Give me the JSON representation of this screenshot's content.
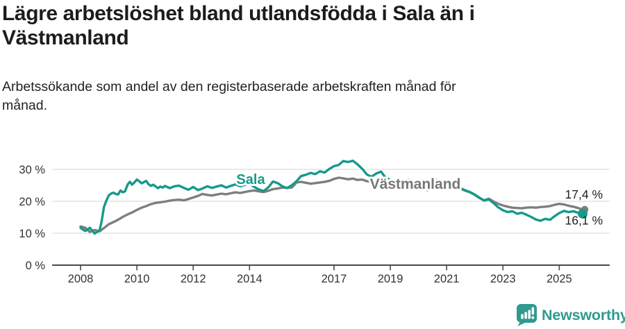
{
  "header": {
    "title": "Lägre arbetslöshet bland utlandsfödda i Sala än i\nVästmanland",
    "subtitle": "Arbetssökande som andel av den registerbaserade arbetskraften månad för\nmånad."
  },
  "footer": {
    "brand": "Newsworthy",
    "logo_icon": "newsworthy-bar-chart-bubble-icon",
    "logo_color": "#2f9a8d"
  },
  "colors": {
    "sala_teal": "#16998b",
    "vastmanland_gray": "#7e7e7e",
    "gridline": "#e3e3e3",
    "axis": "#4a4a4a",
    "tick_label": "#333333",
    "end_label": "#222222"
  },
  "chart_data": {
    "type": "line",
    "grid": "horizontal-only",
    "legend_position": "inline-labels-on-lines",
    "x_axis": {
      "range_years": [
        2008,
        2025.83
      ],
      "tick_labels": [
        "2008",
        "2010",
        "2012",
        "2014",
        "2017",
        "2019",
        "2021",
        "2023",
        "2025"
      ],
      "tick_values": [
        2008,
        2010,
        2012,
        2014,
        2017,
        2019,
        2021,
        2023,
        2025
      ]
    },
    "y_axis": {
      "unit": "%",
      "range": [
        0,
        34
      ],
      "tick_labels": [
        "0 %",
        "10 %",
        "20 %",
        "30 %"
      ],
      "tick_values": [
        0,
        10,
        20,
        30
      ]
    },
    "series": [
      {
        "name": "Västmanland",
        "color": "#7e7e7e",
        "label_color": "#777777",
        "end_value": 17.4,
        "end_label": "17,4 %",
        "label_anchor": {
          "x": 598,
          "y": 62
        },
        "points": [
          [
            2008.0,
            12.1
          ],
          [
            2008.17,
            11.7
          ],
          [
            2008.33,
            10.4
          ],
          [
            2008.5,
            11.0
          ],
          [
            2008.67,
            10.6
          ],
          [
            2008.83,
            11.6
          ],
          [
            2009.0,
            12.8
          ],
          [
            2009.17,
            13.5
          ],
          [
            2009.33,
            14.2
          ],
          [
            2009.5,
            15.1
          ],
          [
            2009.67,
            15.9
          ],
          [
            2009.83,
            16.5
          ],
          [
            2010.0,
            17.3
          ],
          [
            2010.17,
            18.0
          ],
          [
            2010.33,
            18.5
          ],
          [
            2010.5,
            19.1
          ],
          [
            2010.67,
            19.5
          ],
          [
            2010.83,
            19.7
          ],
          [
            2011.0,
            19.9
          ],
          [
            2011.17,
            20.2
          ],
          [
            2011.33,
            20.4
          ],
          [
            2011.5,
            20.5
          ],
          [
            2011.67,
            20.3
          ],
          [
            2011.83,
            20.7
          ],
          [
            2012.0,
            21.2
          ],
          [
            2012.17,
            21.7
          ],
          [
            2012.33,
            22.3
          ],
          [
            2012.5,
            22.0
          ],
          [
            2012.67,
            21.8
          ],
          [
            2012.83,
            22.1
          ],
          [
            2013.0,
            22.4
          ],
          [
            2013.17,
            22.2
          ],
          [
            2013.33,
            22.5
          ],
          [
            2013.5,
            22.8
          ],
          [
            2013.67,
            22.6
          ],
          [
            2013.83,
            22.9
          ],
          [
            2014.0,
            23.2
          ],
          [
            2014.17,
            23.4
          ],
          [
            2014.33,
            23.1
          ],
          [
            2014.5,
            22.9
          ],
          [
            2014.67,
            23.3
          ],
          [
            2014.83,
            23.8
          ],
          [
            2015.0,
            24.0
          ],
          [
            2015.17,
            24.3
          ],
          [
            2015.33,
            24.2
          ],
          [
            2015.5,
            24.3
          ],
          [
            2015.67,
            25.9
          ],
          [
            2015.83,
            26.1
          ],
          [
            2016.0,
            25.8
          ],
          [
            2016.17,
            25.5
          ],
          [
            2016.33,
            25.7
          ],
          [
            2016.5,
            25.9
          ],
          [
            2016.67,
            26.1
          ],
          [
            2016.83,
            26.4
          ],
          [
            2017.0,
            27.0
          ],
          [
            2017.17,
            27.4
          ],
          [
            2017.33,
            27.2
          ],
          [
            2017.5,
            26.9
          ],
          [
            2017.67,
            27.1
          ],
          [
            2017.83,
            26.7
          ],
          [
            2018.0,
            26.8
          ],
          [
            2018.17,
            26.3
          ],
          [
            2018.33,
            26.0
          ],
          [
            2018.5,
            26.2
          ],
          [
            2018.67,
            25.9
          ],
          [
            2018.83,
            25.6
          ],
          [
            2019.0,
            25.8
          ],
          [
            2019.17,
            25.5
          ],
          [
            2019.33,
            25.7
          ],
          [
            2019.5,
            25.4
          ],
          [
            2019.67,
            25.6
          ],
          [
            2019.83,
            25.2
          ],
          [
            2020.0,
            24.9
          ],
          [
            2020.17,
            24.1
          ],
          [
            2020.33,
            23.5
          ],
          [
            2020.5,
            24.4
          ],
          [
            2020.67,
            25.0
          ],
          [
            2020.83,
            25.4
          ],
          [
            2021.0,
            25.6
          ],
          [
            2021.17,
            25.1
          ],
          [
            2021.33,
            24.5
          ],
          [
            2021.5,
            23.9
          ],
          [
            2021.67,
            23.3
          ],
          [
            2021.83,
            22.8
          ],
          [
            2022.0,
            22.0
          ],
          [
            2022.17,
            21.0
          ],
          [
            2022.33,
            20.3
          ],
          [
            2022.5,
            20.8
          ],
          [
            2022.67,
            19.9
          ],
          [
            2022.83,
            19.2
          ],
          [
            2023.0,
            18.7
          ],
          [
            2023.17,
            18.3
          ],
          [
            2023.33,
            18.0
          ],
          [
            2023.5,
            17.9
          ],
          [
            2023.67,
            17.8
          ],
          [
            2023.83,
            18.0
          ],
          [
            2024.0,
            18.1
          ],
          [
            2024.17,
            18.0
          ],
          [
            2024.33,
            18.2
          ],
          [
            2024.5,
            18.3
          ],
          [
            2024.67,
            18.5
          ],
          [
            2024.83,
            18.9
          ],
          [
            2025.0,
            19.2
          ],
          [
            2025.17,
            19.0
          ],
          [
            2025.33,
            18.6
          ],
          [
            2025.5,
            18.3
          ],
          [
            2025.67,
            17.9
          ],
          [
            2025.83,
            17.4
          ]
        ]
      },
      {
        "name": "Sala",
        "color": "#16998b",
        "label_color": "#16998b",
        "end_value": 16.1,
        "end_label": "16,1 %",
        "label_anchor": {
          "x": 361,
          "y": 55
        },
        "points": [
          [
            2008.0,
            11.7
          ],
          [
            2008.08,
            11.2
          ],
          [
            2008.17,
            10.7
          ],
          [
            2008.25,
            11.2
          ],
          [
            2008.33,
            11.7
          ],
          [
            2008.42,
            10.8
          ],
          [
            2008.5,
            9.9
          ],
          [
            2008.58,
            10.4
          ],
          [
            2008.67,
            10.7
          ],
          [
            2008.75,
            13.8
          ],
          [
            2008.83,
            18.2
          ],
          [
            2008.92,
            20.3
          ],
          [
            2009.0,
            21.8
          ],
          [
            2009.08,
            22.4
          ],
          [
            2009.17,
            22.7
          ],
          [
            2009.25,
            22.3
          ],
          [
            2009.33,
            22.1
          ],
          [
            2009.42,
            23.4
          ],
          [
            2009.5,
            22.8
          ],
          [
            2009.58,
            23.1
          ],
          [
            2009.67,
            25.2
          ],
          [
            2009.75,
            26.1
          ],
          [
            2009.83,
            25.2
          ],
          [
            2009.92,
            26.0
          ],
          [
            2010.0,
            26.8
          ],
          [
            2010.08,
            26.3
          ],
          [
            2010.17,
            25.6
          ],
          [
            2010.25,
            26.0
          ],
          [
            2010.33,
            26.4
          ],
          [
            2010.42,
            25.3
          ],
          [
            2010.5,
            24.8
          ],
          [
            2010.58,
            25.2
          ],
          [
            2010.67,
            24.6
          ],
          [
            2010.75,
            24.1
          ],
          [
            2010.83,
            24.6
          ],
          [
            2010.92,
            24.3
          ],
          [
            2011.0,
            24.8
          ],
          [
            2011.17,
            24.1
          ],
          [
            2011.33,
            24.7
          ],
          [
            2011.5,
            24.9
          ],
          [
            2011.67,
            24.2
          ],
          [
            2011.83,
            23.6
          ],
          [
            2012.0,
            24.5
          ],
          [
            2012.17,
            23.5
          ],
          [
            2012.33,
            24.0
          ],
          [
            2012.5,
            24.7
          ],
          [
            2012.67,
            24.2
          ],
          [
            2012.83,
            24.6
          ],
          [
            2013.0,
            25.0
          ],
          [
            2013.17,
            24.3
          ],
          [
            2013.33,
            24.8
          ],
          [
            2013.5,
            25.3
          ],
          [
            2013.67,
            24.7
          ],
          [
            2013.83,
            25.1
          ],
          [
            2014.0,
            25.5
          ],
          [
            2014.17,
            24.5
          ],
          [
            2014.33,
            23.7
          ],
          [
            2014.5,
            23.2
          ],
          [
            2014.67,
            24.4
          ],
          [
            2014.83,
            26.2
          ],
          [
            2015.0,
            25.7
          ],
          [
            2015.17,
            24.7
          ],
          [
            2015.33,
            24.1
          ],
          [
            2015.5,
            25.0
          ],
          [
            2015.67,
            26.3
          ],
          [
            2015.83,
            27.9
          ],
          [
            2016.0,
            28.3
          ],
          [
            2016.17,
            28.9
          ],
          [
            2016.33,
            28.5
          ],
          [
            2016.5,
            29.4
          ],
          [
            2016.67,
            29.0
          ],
          [
            2016.83,
            30.1
          ],
          [
            2017.0,
            31.0
          ],
          [
            2017.17,
            31.4
          ],
          [
            2017.33,
            32.6
          ],
          [
            2017.5,
            32.3
          ],
          [
            2017.67,
            32.7
          ],
          [
            2017.83,
            31.6
          ],
          [
            2018.0,
            30.2
          ],
          [
            2018.17,
            28.4
          ],
          [
            2018.33,
            27.7
          ],
          [
            2018.5,
            28.7
          ],
          [
            2018.67,
            29.3
          ],
          [
            2018.83,
            27.4
          ],
          [
            2019.0,
            26.7
          ],
          [
            2019.17,
            26.3
          ],
          [
            2019.33,
            26.8
          ],
          [
            2019.5,
            26.4
          ],
          [
            2019.67,
            26.7
          ],
          [
            2019.83,
            26.3
          ],
          [
            2020.0,
            26.0
          ],
          [
            2020.17,
            26.5
          ],
          [
            2020.33,
            25.7
          ],
          [
            2020.5,
            26.4
          ],
          [
            2020.67,
            26.7
          ],
          [
            2020.83,
            26.3
          ],
          [
            2021.0,
            26.5
          ],
          [
            2021.17,
            25.9
          ],
          [
            2021.33,
            25.0
          ],
          [
            2021.5,
            24.1
          ],
          [
            2021.67,
            23.4
          ],
          [
            2021.83,
            22.9
          ],
          [
            2022.0,
            22.1
          ],
          [
            2022.17,
            21.1
          ],
          [
            2022.33,
            20.2
          ],
          [
            2022.5,
            20.6
          ],
          [
            2022.67,
            19.4
          ],
          [
            2022.83,
            18.1
          ],
          [
            2023.0,
            17.2
          ],
          [
            2023.17,
            16.6
          ],
          [
            2023.33,
            16.9
          ],
          [
            2023.5,
            16.1
          ],
          [
            2023.67,
            16.4
          ],
          [
            2023.83,
            15.8
          ],
          [
            2024.0,
            15.1
          ],
          [
            2024.17,
            14.3
          ],
          [
            2024.33,
            13.9
          ],
          [
            2024.5,
            14.5
          ],
          [
            2024.67,
            14.2
          ],
          [
            2024.83,
            15.3
          ],
          [
            2025.0,
            16.3
          ],
          [
            2025.17,
            17.0
          ],
          [
            2025.33,
            16.6
          ],
          [
            2025.5,
            16.9
          ],
          [
            2025.67,
            16.4
          ],
          [
            2025.83,
            16.1
          ]
        ]
      }
    ]
  }
}
